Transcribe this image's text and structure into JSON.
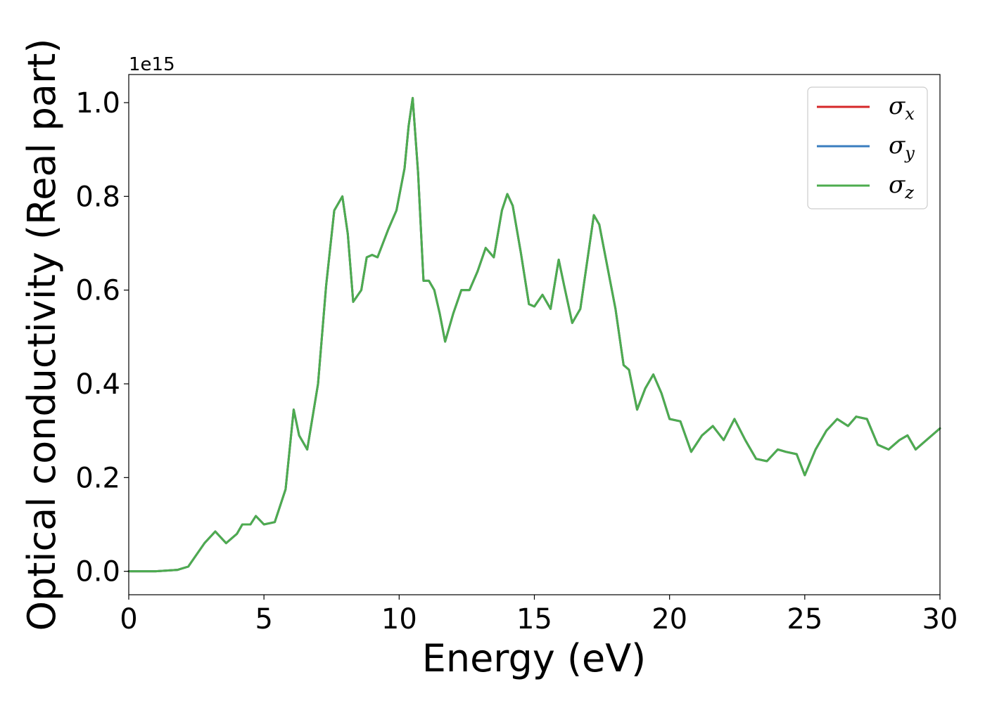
{
  "chart_data": {
    "type": "line",
    "title": "",
    "xlabel": "Energy (eV)",
    "ylabel": "Optical conductivity (Real part)",
    "y_offset_label": "1e15",
    "xlim": [
      0,
      30
    ],
    "ylim": [
      -0.05,
      1.06
    ],
    "x_ticks": [
      "0",
      "5",
      "10",
      "15",
      "20",
      "25",
      "30"
    ],
    "y_ticks": [
      "0.0",
      "0.2",
      "0.4",
      "0.6",
      "0.8",
      "1.0"
    ],
    "grid": false,
    "legend_position": "top-right",
    "legend": [
      {
        "symbol": "σ",
        "sub": "x",
        "color": "#d62728"
      },
      {
        "symbol": "σ",
        "sub": "y",
        "color": "#3a7dbf"
      },
      {
        "symbol": "σ",
        "sub": "z",
        "color": "#4dac4f"
      }
    ],
    "series": [
      {
        "name": "σx",
        "color": "#d62728",
        "x": [
          0,
          1,
          1.8,
          2.2,
          2.5,
          2.8,
          3.2,
          3.6,
          4.0,
          4.2,
          4.5,
          4.7,
          5.0,
          5.4,
          5.8,
          6.1,
          6.3,
          6.6,
          7.0,
          7.3,
          7.6,
          7.9,
          8.1,
          8.3,
          8.6,
          8.8,
          9.0,
          9.2,
          9.4,
          9.6,
          9.9,
          10.2,
          10.35,
          10.5,
          10.7,
          10.9,
          11.1,
          11.3,
          11.5,
          11.7,
          12.0,
          12.3,
          12.6,
          12.9,
          13.2,
          13.5,
          13.8,
          14.0,
          14.2,
          14.5,
          14.8,
          15.0,
          15.3,
          15.6,
          15.9,
          16.1,
          16.4,
          16.7,
          17.0,
          17.2,
          17.4,
          17.7,
          18.0,
          18.3,
          18.5,
          18.8,
          19.1,
          19.4,
          19.7,
          20.0,
          20.4,
          20.8,
          21.2,
          21.6,
          22.0,
          22.4,
          22.8,
          23.2,
          23.6,
          24.0,
          24.3,
          24.7,
          25.0,
          25.4,
          25.8,
          26.2,
          26.6,
          26.9,
          27.3,
          27.7,
          28.1,
          28.5,
          28.8,
          29.1,
          29.5,
          30.0
        ],
        "y": [
          0.0,
          0.0,
          0.003,
          0.01,
          0.035,
          0.06,
          0.085,
          0.06,
          0.08,
          0.1,
          0.1,
          0.118,
          0.1,
          0.105,
          0.175,
          0.345,
          0.29,
          0.26,
          0.4,
          0.61,
          0.77,
          0.8,
          0.72,
          0.575,
          0.6,
          0.67,
          0.675,
          0.67,
          0.7,
          0.73,
          0.77,
          0.86,
          0.95,
          1.01,
          0.85,
          0.62,
          0.62,
          0.6,
          0.55,
          0.49,
          0.55,
          0.6,
          0.6,
          0.64,
          0.69,
          0.67,
          0.77,
          0.805,
          0.78,
          0.68,
          0.57,
          0.565,
          0.59,
          0.56,
          0.665,
          0.61,
          0.53,
          0.56,
          0.68,
          0.76,
          0.74,
          0.65,
          0.56,
          0.44,
          0.43,
          0.345,
          0.39,
          0.42,
          0.38,
          0.325,
          0.32,
          0.255,
          0.29,
          0.31,
          0.28,
          0.325,
          0.28,
          0.24,
          0.235,
          0.26,
          0.255,
          0.25,
          0.205,
          0.26,
          0.3,
          0.325,
          0.31,
          0.33,
          0.325,
          0.27,
          0.26,
          0.28,
          0.29,
          0.26,
          0.28,
          0.305
        ]
      },
      {
        "name": "σy",
        "color": "#3a7dbf",
        "x": [
          0,
          1,
          1.8,
          2.2,
          2.5,
          2.8,
          3.2,
          3.6,
          4.0,
          4.2,
          4.5,
          4.7,
          5.0,
          5.4,
          5.8,
          6.1,
          6.3,
          6.6,
          7.0,
          7.3,
          7.6,
          7.9,
          8.1,
          8.3,
          8.6,
          8.8,
          9.0,
          9.2,
          9.4,
          9.6,
          9.9,
          10.2,
          10.35,
          10.5,
          10.7,
          10.9,
          11.1,
          11.3,
          11.5,
          11.7,
          12.0,
          12.3,
          12.6,
          12.9,
          13.2,
          13.5,
          13.8,
          14.0,
          14.2,
          14.5,
          14.8,
          15.0,
          15.3,
          15.6,
          15.9,
          16.1,
          16.4,
          16.7,
          17.0,
          17.2,
          17.4,
          17.7,
          18.0,
          18.3,
          18.5,
          18.8,
          19.1,
          19.4,
          19.7,
          20.0,
          20.4,
          20.8,
          21.2,
          21.6,
          22.0,
          22.4,
          22.8,
          23.2,
          23.6,
          24.0,
          24.3,
          24.7,
          25.0,
          25.4,
          25.8,
          26.2,
          26.6,
          26.9,
          27.3,
          27.7,
          28.1,
          28.5,
          28.8,
          29.1,
          29.5,
          30.0
        ],
        "y": [
          0.0,
          0.0,
          0.003,
          0.01,
          0.035,
          0.06,
          0.085,
          0.06,
          0.08,
          0.1,
          0.1,
          0.118,
          0.1,
          0.105,
          0.175,
          0.345,
          0.29,
          0.26,
          0.4,
          0.61,
          0.77,
          0.8,
          0.72,
          0.575,
          0.6,
          0.67,
          0.675,
          0.67,
          0.7,
          0.73,
          0.77,
          0.86,
          0.95,
          1.01,
          0.85,
          0.62,
          0.62,
          0.6,
          0.55,
          0.49,
          0.55,
          0.6,
          0.6,
          0.64,
          0.69,
          0.67,
          0.77,
          0.805,
          0.78,
          0.68,
          0.57,
          0.565,
          0.59,
          0.56,
          0.665,
          0.61,
          0.53,
          0.56,
          0.68,
          0.76,
          0.74,
          0.65,
          0.56,
          0.44,
          0.43,
          0.345,
          0.39,
          0.42,
          0.38,
          0.325,
          0.32,
          0.255,
          0.29,
          0.31,
          0.28,
          0.325,
          0.28,
          0.24,
          0.235,
          0.26,
          0.255,
          0.25,
          0.205,
          0.26,
          0.3,
          0.325,
          0.31,
          0.33,
          0.325,
          0.27,
          0.26,
          0.28,
          0.29,
          0.26,
          0.28,
          0.305
        ]
      },
      {
        "name": "σz",
        "color": "#4dac4f",
        "x": [
          0,
          1,
          1.8,
          2.2,
          2.5,
          2.8,
          3.2,
          3.6,
          4.0,
          4.2,
          4.5,
          4.7,
          5.0,
          5.4,
          5.8,
          6.1,
          6.3,
          6.6,
          7.0,
          7.3,
          7.6,
          7.9,
          8.1,
          8.3,
          8.6,
          8.8,
          9.0,
          9.2,
          9.4,
          9.6,
          9.9,
          10.2,
          10.35,
          10.5,
          10.7,
          10.9,
          11.1,
          11.3,
          11.5,
          11.7,
          12.0,
          12.3,
          12.6,
          12.9,
          13.2,
          13.5,
          13.8,
          14.0,
          14.2,
          14.5,
          14.8,
          15.0,
          15.3,
          15.6,
          15.9,
          16.1,
          16.4,
          16.7,
          17.0,
          17.2,
          17.4,
          17.7,
          18.0,
          18.3,
          18.5,
          18.8,
          19.1,
          19.4,
          19.7,
          20.0,
          20.4,
          20.8,
          21.2,
          21.6,
          22.0,
          22.4,
          22.8,
          23.2,
          23.6,
          24.0,
          24.3,
          24.7,
          25.0,
          25.4,
          25.8,
          26.2,
          26.6,
          26.9,
          27.3,
          27.7,
          28.1,
          28.5,
          28.8,
          29.1,
          29.5,
          30.0
        ],
        "y": [
          0.0,
          0.0,
          0.003,
          0.01,
          0.035,
          0.06,
          0.085,
          0.06,
          0.08,
          0.1,
          0.1,
          0.118,
          0.1,
          0.105,
          0.175,
          0.345,
          0.29,
          0.26,
          0.4,
          0.61,
          0.77,
          0.8,
          0.72,
          0.575,
          0.6,
          0.67,
          0.675,
          0.67,
          0.7,
          0.73,
          0.77,
          0.86,
          0.95,
          1.01,
          0.85,
          0.62,
          0.62,
          0.6,
          0.55,
          0.49,
          0.55,
          0.6,
          0.6,
          0.64,
          0.69,
          0.67,
          0.77,
          0.805,
          0.78,
          0.68,
          0.57,
          0.565,
          0.59,
          0.56,
          0.665,
          0.61,
          0.53,
          0.56,
          0.68,
          0.76,
          0.74,
          0.65,
          0.56,
          0.44,
          0.43,
          0.345,
          0.39,
          0.42,
          0.38,
          0.325,
          0.32,
          0.255,
          0.29,
          0.31,
          0.28,
          0.325,
          0.28,
          0.24,
          0.235,
          0.26,
          0.255,
          0.25,
          0.205,
          0.26,
          0.3,
          0.325,
          0.31,
          0.33,
          0.325,
          0.27,
          0.26,
          0.28,
          0.29,
          0.26,
          0.28,
          0.305
        ]
      }
    ]
  }
}
